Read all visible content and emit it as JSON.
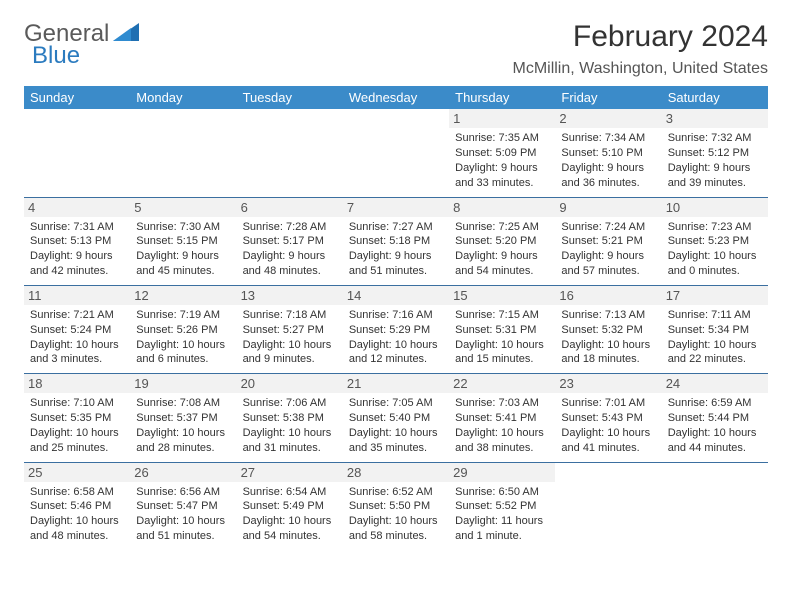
{
  "logo": {
    "word1": "General",
    "word2": "Blue"
  },
  "title": "February 2024",
  "location": "McMillin, Washington, United States",
  "header_bg": "#3b8bc9",
  "divider_color": "#3b6fa0",
  "daynum_bg": "#f2f2f2",
  "columns": [
    "Sunday",
    "Monday",
    "Tuesday",
    "Wednesday",
    "Thursday",
    "Friday",
    "Saturday"
  ],
  "weeks": [
    [
      null,
      null,
      null,
      null,
      {
        "n": "1",
        "sr": "7:35 AM",
        "ss": "5:09 PM",
        "dl": "9 hours and 33 minutes."
      },
      {
        "n": "2",
        "sr": "7:34 AM",
        "ss": "5:10 PM",
        "dl": "9 hours and 36 minutes."
      },
      {
        "n": "3",
        "sr": "7:32 AM",
        "ss": "5:12 PM",
        "dl": "9 hours and 39 minutes."
      }
    ],
    [
      {
        "n": "4",
        "sr": "7:31 AM",
        "ss": "5:13 PM",
        "dl": "9 hours and 42 minutes."
      },
      {
        "n": "5",
        "sr": "7:30 AM",
        "ss": "5:15 PM",
        "dl": "9 hours and 45 minutes."
      },
      {
        "n": "6",
        "sr": "7:28 AM",
        "ss": "5:17 PM",
        "dl": "9 hours and 48 minutes."
      },
      {
        "n": "7",
        "sr": "7:27 AM",
        "ss": "5:18 PM",
        "dl": "9 hours and 51 minutes."
      },
      {
        "n": "8",
        "sr": "7:25 AM",
        "ss": "5:20 PM",
        "dl": "9 hours and 54 minutes."
      },
      {
        "n": "9",
        "sr": "7:24 AM",
        "ss": "5:21 PM",
        "dl": "9 hours and 57 minutes."
      },
      {
        "n": "10",
        "sr": "7:23 AM",
        "ss": "5:23 PM",
        "dl": "10 hours and 0 minutes."
      }
    ],
    [
      {
        "n": "11",
        "sr": "7:21 AM",
        "ss": "5:24 PM",
        "dl": "10 hours and 3 minutes."
      },
      {
        "n": "12",
        "sr": "7:19 AM",
        "ss": "5:26 PM",
        "dl": "10 hours and 6 minutes."
      },
      {
        "n": "13",
        "sr": "7:18 AM",
        "ss": "5:27 PM",
        "dl": "10 hours and 9 minutes."
      },
      {
        "n": "14",
        "sr": "7:16 AM",
        "ss": "5:29 PM",
        "dl": "10 hours and 12 minutes."
      },
      {
        "n": "15",
        "sr": "7:15 AM",
        "ss": "5:31 PM",
        "dl": "10 hours and 15 minutes."
      },
      {
        "n": "16",
        "sr": "7:13 AM",
        "ss": "5:32 PM",
        "dl": "10 hours and 18 minutes."
      },
      {
        "n": "17",
        "sr": "7:11 AM",
        "ss": "5:34 PM",
        "dl": "10 hours and 22 minutes."
      }
    ],
    [
      {
        "n": "18",
        "sr": "7:10 AM",
        "ss": "5:35 PM",
        "dl": "10 hours and 25 minutes."
      },
      {
        "n": "19",
        "sr": "7:08 AM",
        "ss": "5:37 PM",
        "dl": "10 hours and 28 minutes."
      },
      {
        "n": "20",
        "sr": "7:06 AM",
        "ss": "5:38 PM",
        "dl": "10 hours and 31 minutes."
      },
      {
        "n": "21",
        "sr": "7:05 AM",
        "ss": "5:40 PM",
        "dl": "10 hours and 35 minutes."
      },
      {
        "n": "22",
        "sr": "7:03 AM",
        "ss": "5:41 PM",
        "dl": "10 hours and 38 minutes."
      },
      {
        "n": "23",
        "sr": "7:01 AM",
        "ss": "5:43 PM",
        "dl": "10 hours and 41 minutes."
      },
      {
        "n": "24",
        "sr": "6:59 AM",
        "ss": "5:44 PM",
        "dl": "10 hours and 44 minutes."
      }
    ],
    [
      {
        "n": "25",
        "sr": "6:58 AM",
        "ss": "5:46 PM",
        "dl": "10 hours and 48 minutes."
      },
      {
        "n": "26",
        "sr": "6:56 AM",
        "ss": "5:47 PM",
        "dl": "10 hours and 51 minutes."
      },
      {
        "n": "27",
        "sr": "6:54 AM",
        "ss": "5:49 PM",
        "dl": "10 hours and 54 minutes."
      },
      {
        "n": "28",
        "sr": "6:52 AM",
        "ss": "5:50 PM",
        "dl": "10 hours and 58 minutes."
      },
      {
        "n": "29",
        "sr": "6:50 AM",
        "ss": "5:52 PM",
        "dl": "11 hours and 1 minute."
      },
      null,
      null
    ]
  ],
  "labels": {
    "sunrise": "Sunrise:",
    "sunset": "Sunset:",
    "daylight": "Daylight:"
  }
}
